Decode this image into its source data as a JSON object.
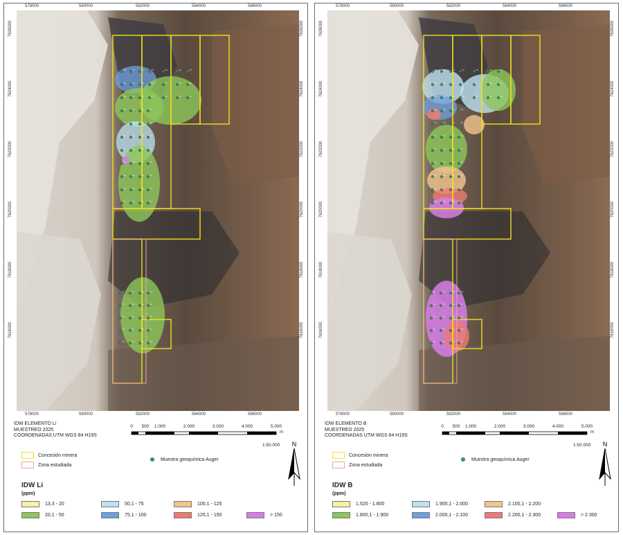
{
  "colors": {
    "concession": "#f2e21a",
    "study_zone": "#e8a8a0",
    "sample_point": "#3d9a6a"
  },
  "common": {
    "x_ticks": [
      "578000",
      "580000",
      "582000",
      "584000",
      "586000"
    ],
    "y_ticks": [
      "7626000",
      "7624000",
      "7622000",
      "7620000",
      "7618000",
      "7616000"
    ],
    "scale_numbers": [
      "0",
      "500",
      "1.000",
      "2.000",
      "3.000",
      "4.000",
      "5.000"
    ],
    "scale_unit": "m",
    "scale_ratio": "1:50.000",
    "legend_concession": "Concesión minera",
    "legend_study_zone": "Zona estudiada",
    "legend_sample": "Muestra geoquímica Auger",
    "north_label": "N",
    "north_icon": "north-arrow-icon"
  },
  "maps": [
    {
      "title_line1": "IDW ELEMENTO Li",
      "title_line2": "MUESTREO 2025",
      "title_line3": "COORDENADAS UTM WGS 84 H19S",
      "legend_title": "IDW Li",
      "legend_units": "(ppm)",
      "classes": [
        {
          "label": "13,3 - 20",
          "color": "#f6f1a6"
        },
        {
          "label": "50,1 - 75",
          "color": "#bfe2f0"
        },
        {
          "label": "100,1 - 125",
          "color": "#f3c48e"
        },
        {
          "label": "20,1 - 50",
          "color": "#8dc75a"
        },
        {
          "label": "75,1 - 100",
          "color": "#6f9fe0"
        },
        {
          "label": "125,1 - 150",
          "color": "#ee7b70"
        },
        {
          "label": "> 150",
          "color": "#d77ee6"
        }
      ]
    },
    {
      "title_line1": "IDW ELEMENTO B",
      "title_line2": "MUESTREO 2025",
      "title_line3": "COORDENADAS UTM WGS 84 H19S",
      "legend_title": "IDW B",
      "legend_units": "(ppm)",
      "classes": [
        {
          "label": "1.520 - 1.800",
          "color": "#f6f1a6"
        },
        {
          "label": "1.900,1 - 2.000",
          "color": "#bfe2f0"
        },
        {
          "label": "2.100,1 - 2.200",
          "color": "#f3c48e"
        },
        {
          "label": "1.800,1 - 1.900",
          "color": "#8dc75a"
        },
        {
          "label": "2.000,1 - 2.100",
          "color": "#6f9fe0"
        },
        {
          "label": "2.200,1 - 2.300",
          "color": "#ee7b70"
        },
        {
          "label": "> 2.300",
          "color": "#d77ee6"
        }
      ]
    }
  ]
}
